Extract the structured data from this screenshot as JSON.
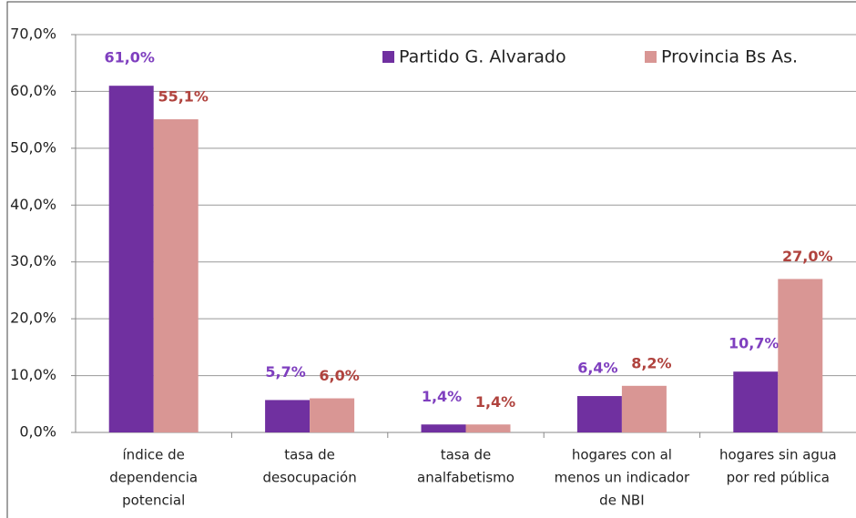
{
  "chart_data": {
    "type": "bar",
    "categories": [
      [
        "índice de",
        "dependencia",
        "potencial"
      ],
      [
        "tasa de",
        "desocupación"
      ],
      [
        "tasa de",
        "analfabetismo"
      ],
      [
        "hogares con al",
        "menos un indicador",
        "de NBI"
      ],
      [
        "hogares sin agua",
        "por red pública"
      ]
    ],
    "series": [
      {
        "name": "Partido G. Alvarado",
        "color": "#7030a0",
        "label_color": "#7f3fbf",
        "values": [
          61.0,
          5.7,
          1.4,
          6.4,
          10.7
        ],
        "value_labels": [
          "61,0%",
          "5,7%",
          "1,4%",
          "6,4%",
          "10,7%"
        ]
      },
      {
        "name": "Provincia Bs As.",
        "color": "#d99694",
        "label_color": "#b0433e",
        "values": [
          55.1,
          6.0,
          1.4,
          8.2,
          27.0
        ],
        "value_labels": [
          "55,1%",
          "6,0%",
          "1,4%",
          "8,2%",
          "27,0%"
        ]
      }
    ],
    "ylim": [
      0,
      70
    ],
    "yticks": [
      {
        "value": 0,
        "label": "0,0%"
      },
      {
        "value": 10,
        "label": "10,0%"
      },
      {
        "value": 20,
        "label": "20,0%"
      },
      {
        "value": 30,
        "label": "30,0%"
      },
      {
        "value": 40,
        "label": "40,0%"
      },
      {
        "value": 50,
        "label": "50,0%"
      },
      {
        "value": 60,
        "label": "60,0%"
      },
      {
        "value": 70,
        "label": "70,0%"
      }
    ],
    "grid": true,
    "legend": "top-right"
  }
}
